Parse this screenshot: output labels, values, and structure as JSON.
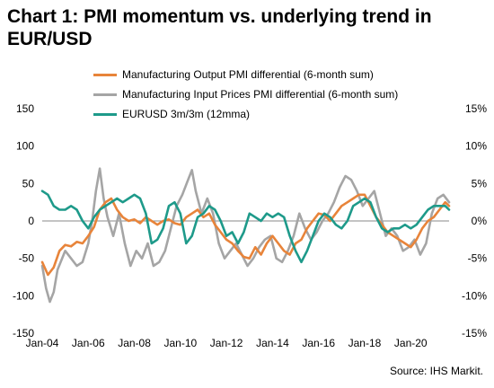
{
  "title": "Chart 1: PMI momentum vs. underlying trend in EUR/USD",
  "source": "Source: IHS Markit.",
  "colors": {
    "output": "#e8843a",
    "input": "#a5a5a5",
    "eurusd": "#1e9a8a",
    "axis": "#888888"
  },
  "chart_data": {
    "type": "line",
    "x_range": [
      "2004-01",
      "2021-09"
    ],
    "x_tick_labels": [
      "Jan-04",
      "Jan-06",
      "Jan-08",
      "Jan-10",
      "Jan-12",
      "Jan-14",
      "Jan-16",
      "Jan-18",
      "Jan-20"
    ],
    "y_left": {
      "ylim": [
        -150,
        150
      ],
      "ticks": [
        150,
        100,
        50,
        0,
        -50,
        -100,
        -150
      ]
    },
    "y_right": {
      "ylim": [
        -15,
        15
      ],
      "ticks": [
        "15%",
        "10%",
        "5%",
        "0%",
        "-5%",
        "-10%",
        "-15%"
      ]
    },
    "series": [
      {
        "name": "Manufacturing Output PMI differential (6-month sum)",
        "axis": "left",
        "points": [
          [
            "2004-01",
            -55
          ],
          [
            "2004-04",
            -72
          ],
          [
            "2004-07",
            -62
          ],
          [
            "2004-10",
            -40
          ],
          [
            "2005-01",
            -32
          ],
          [
            "2005-04",
            -34
          ],
          [
            "2005-07",
            -28
          ],
          [
            "2005-10",
            -30
          ],
          [
            "2006-01",
            -20
          ],
          [
            "2006-04",
            -8
          ],
          [
            "2006-07",
            15
          ],
          [
            "2006-10",
            25
          ],
          [
            "2007-01",
            30
          ],
          [
            "2007-04",
            15
          ],
          [
            "2007-07",
            5
          ],
          [
            "2007-10",
            0
          ],
          [
            "2008-01",
            2
          ],
          [
            "2008-04",
            -3
          ],
          [
            "2008-07",
            5
          ],
          [
            "2008-10",
            0
          ],
          [
            "2009-01",
            -5
          ],
          [
            "2009-04",
            0
          ],
          [
            "2009-07",
            2
          ],
          [
            "2009-10",
            -3
          ],
          [
            "2010-01",
            -5
          ],
          [
            "2010-04",
            5
          ],
          [
            "2010-07",
            10
          ],
          [
            "2010-10",
            15
          ],
          [
            "2011-01",
            5
          ],
          [
            "2011-04",
            10
          ],
          [
            "2011-07",
            -5
          ],
          [
            "2011-10",
            -15
          ],
          [
            "2012-01",
            -25
          ],
          [
            "2012-04",
            -30
          ],
          [
            "2012-07",
            -40
          ],
          [
            "2012-10",
            -48
          ],
          [
            "2013-01",
            -50
          ],
          [
            "2013-04",
            -35
          ],
          [
            "2013-07",
            -45
          ],
          [
            "2013-10",
            -30
          ],
          [
            "2014-01",
            -20
          ],
          [
            "2014-04",
            -30
          ],
          [
            "2014-07",
            -40
          ],
          [
            "2014-10",
            -45
          ],
          [
            "2015-01",
            -30
          ],
          [
            "2015-04",
            -25
          ],
          [
            "2015-07",
            -10
          ],
          [
            "2015-10",
            0
          ],
          [
            "2016-01",
            10
          ],
          [
            "2016-04",
            8
          ],
          [
            "2016-07",
            0
          ],
          [
            "2016-10",
            10
          ],
          [
            "2017-01",
            20
          ],
          [
            "2017-04",
            25
          ],
          [
            "2017-07",
            30
          ],
          [
            "2017-10",
            35
          ],
          [
            "2018-01",
            35
          ],
          [
            "2018-04",
            20
          ],
          [
            "2018-07",
            5
          ],
          [
            "2018-10",
            -5
          ],
          [
            "2019-01",
            -15
          ],
          [
            "2019-04",
            -20
          ],
          [
            "2019-07",
            -25
          ],
          [
            "2019-10",
            -30
          ],
          [
            "2020-01",
            -35
          ],
          [
            "2020-04",
            -25
          ],
          [
            "2020-07",
            -10
          ],
          [
            "2020-10",
            0
          ],
          [
            "2021-01",
            5
          ],
          [
            "2021-04",
            15
          ],
          [
            "2021-07",
            25
          ],
          [
            "2021-09",
            20
          ]
        ]
      },
      {
        "name": "Manufacturing Input Prices PMI differential (6-month sum)",
        "axis": "left",
        "points": [
          [
            "2004-01",
            -60
          ],
          [
            "2004-03",
            -90
          ],
          [
            "2004-05",
            -108
          ],
          [
            "2004-07",
            -95
          ],
          [
            "2004-09",
            -65
          ],
          [
            "2005-01",
            -40
          ],
          [
            "2005-04",
            -50
          ],
          [
            "2005-07",
            -60
          ],
          [
            "2005-10",
            -55
          ],
          [
            "2006-01",
            -30
          ],
          [
            "2006-03",
            0
          ],
          [
            "2006-05",
            40
          ],
          [
            "2006-07",
            70
          ],
          [
            "2006-09",
            30
          ],
          [
            "2006-11",
            5
          ],
          [
            "2007-02",
            -20
          ],
          [
            "2007-05",
            10
          ],
          [
            "2007-08",
            -30
          ],
          [
            "2007-11",
            -60
          ],
          [
            "2008-02",
            -40
          ],
          [
            "2008-05",
            -50
          ],
          [
            "2008-08",
            -30
          ],
          [
            "2008-11",
            -60
          ],
          [
            "2009-02",
            -55
          ],
          [
            "2009-05",
            -40
          ],
          [
            "2009-08",
            -10
          ],
          [
            "2009-11",
            20
          ],
          [
            "2010-02",
            35
          ],
          [
            "2010-05",
            55
          ],
          [
            "2010-07",
            68
          ],
          [
            "2010-09",
            40
          ],
          [
            "2010-12",
            10
          ],
          [
            "2011-03",
            30
          ],
          [
            "2011-06",
            10
          ],
          [
            "2011-09",
            -30
          ],
          [
            "2011-12",
            -50
          ],
          [
            "2012-03",
            -40
          ],
          [
            "2012-06",
            -30
          ],
          [
            "2012-09",
            -45
          ],
          [
            "2012-12",
            -60
          ],
          [
            "2013-03",
            -50
          ],
          [
            "2013-06",
            -35
          ],
          [
            "2013-09",
            -25
          ],
          [
            "2013-12",
            -20
          ],
          [
            "2014-03",
            -50
          ],
          [
            "2014-06",
            -55
          ],
          [
            "2014-09",
            -40
          ],
          [
            "2014-12",
            -20
          ],
          [
            "2015-03",
            10
          ],
          [
            "2015-06",
            -10
          ],
          [
            "2015-09",
            -25
          ],
          [
            "2015-12",
            -15
          ],
          [
            "2016-03",
            0
          ],
          [
            "2016-06",
            10
          ],
          [
            "2016-09",
            25
          ],
          [
            "2016-12",
            45
          ],
          [
            "2017-03",
            60
          ],
          [
            "2017-06",
            55
          ],
          [
            "2017-09",
            40
          ],
          [
            "2017-12",
            20
          ],
          [
            "2018-03",
            30
          ],
          [
            "2018-06",
            40
          ],
          [
            "2018-09",
            10
          ],
          [
            "2018-12",
            -20
          ],
          [
            "2019-03",
            -10
          ],
          [
            "2019-06",
            -20
          ],
          [
            "2019-09",
            -40
          ],
          [
            "2019-12",
            -35
          ],
          [
            "2020-03",
            -25
          ],
          [
            "2020-06",
            -45
          ],
          [
            "2020-09",
            -30
          ],
          [
            "2020-12",
            10
          ],
          [
            "2021-03",
            30
          ],
          [
            "2021-06",
            35
          ],
          [
            "2021-09",
            25
          ]
        ]
      },
      {
        "name": "EURUSD 3m/3m (12mma)",
        "axis": "right",
        "points": [
          [
            "2004-01",
            4.0
          ],
          [
            "2004-04",
            3.5
          ],
          [
            "2004-07",
            2.0
          ],
          [
            "2004-10",
            1.5
          ],
          [
            "2005-01",
            1.5
          ],
          [
            "2005-04",
            2.0
          ],
          [
            "2005-07",
            1.5
          ],
          [
            "2005-10",
            0.0
          ],
          [
            "2006-01",
            -1.0
          ],
          [
            "2006-04",
            0.5
          ],
          [
            "2006-07",
            1.5
          ],
          [
            "2006-10",
            2.0
          ],
          [
            "2007-01",
            2.5
          ],
          [
            "2007-04",
            3.0
          ],
          [
            "2007-07",
            2.5
          ],
          [
            "2007-10",
            3.0
          ],
          [
            "2008-01",
            3.5
          ],
          [
            "2008-04",
            3.0
          ],
          [
            "2008-07",
            1.0
          ],
          [
            "2008-10",
            -3.0
          ],
          [
            "2009-01",
            -2.5
          ],
          [
            "2009-04",
            -1.0
          ],
          [
            "2009-07",
            2.0
          ],
          [
            "2009-10",
            2.5
          ],
          [
            "2010-01",
            1.0
          ],
          [
            "2010-04",
            -3.0
          ],
          [
            "2010-07",
            -2.0
          ],
          [
            "2010-10",
            0.5
          ],
          [
            "2011-01",
            1.0
          ],
          [
            "2011-04",
            2.0
          ],
          [
            "2011-07",
            1.5
          ],
          [
            "2011-10",
            0.0
          ],
          [
            "2012-01",
            -2.0
          ],
          [
            "2012-04",
            -1.5
          ],
          [
            "2012-07",
            -3.0
          ],
          [
            "2012-10",
            -1.5
          ],
          [
            "2013-01",
            1.0
          ],
          [
            "2013-04",
            0.5
          ],
          [
            "2013-07",
            0.0
          ],
          [
            "2013-10",
            1.0
          ],
          [
            "2014-01",
            0.5
          ],
          [
            "2014-04",
            1.0
          ],
          [
            "2014-07",
            0.5
          ],
          [
            "2014-10",
            -2.0
          ],
          [
            "2015-01",
            -4.0
          ],
          [
            "2015-04",
            -5.5
          ],
          [
            "2015-07",
            -4.0
          ],
          [
            "2015-10",
            -2.0
          ],
          [
            "2016-01",
            0.0
          ],
          [
            "2016-04",
            1.0
          ],
          [
            "2016-07",
            0.5
          ],
          [
            "2016-10",
            -0.5
          ],
          [
            "2017-01",
            -1.0
          ],
          [
            "2017-04",
            0.0
          ],
          [
            "2017-07",
            2.0
          ],
          [
            "2017-10",
            2.5
          ],
          [
            "2018-01",
            3.0
          ],
          [
            "2018-04",
            2.5
          ],
          [
            "2018-07",
            0.5
          ],
          [
            "2018-10",
            -1.0
          ],
          [
            "2019-01",
            -1.5
          ],
          [
            "2019-04",
            -1.0
          ],
          [
            "2019-07",
            -1.0
          ],
          [
            "2019-10",
            -0.5
          ],
          [
            "2020-01",
            -1.0
          ],
          [
            "2020-04",
            -0.5
          ],
          [
            "2020-07",
            0.5
          ],
          [
            "2020-10",
            1.5
          ],
          [
            "2021-01",
            2.0
          ],
          [
            "2021-04",
            2.0
          ],
          [
            "2021-07",
            2.0
          ],
          [
            "2021-09",
            1.5
          ]
        ]
      }
    ]
  }
}
